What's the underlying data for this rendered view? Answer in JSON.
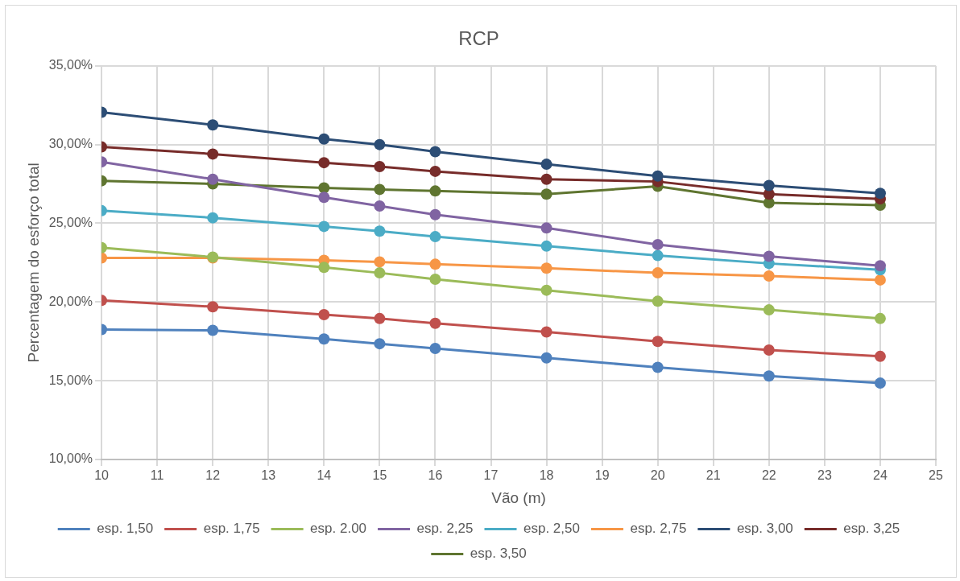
{
  "chart_data": {
    "type": "line",
    "title": "RCP",
    "xlabel": "Vão (m)",
    "ylabel": "Percentagem do esforço total",
    "x": [
      10,
      12,
      14,
      15,
      16,
      18,
      20,
      22,
      24
    ],
    "xlim": [
      10,
      25
    ],
    "xticks": [
      10,
      11,
      12,
      13,
      14,
      15,
      16,
      17,
      18,
      19,
      20,
      21,
      22,
      23,
      24,
      25
    ],
    "ylim": [
      10,
      35
    ],
    "yticks": [
      {
        "value": 10,
        "label": "10,00%"
      },
      {
        "value": 15,
        "label": "15,00%"
      },
      {
        "value": 20,
        "label": "20,00%"
      },
      {
        "value": 25,
        "label": "25,00%"
      },
      {
        "value": 30,
        "label": "30,00%"
      },
      {
        "value": 35,
        "label": "35,00%"
      }
    ],
    "grid": true,
    "legend": "bottom",
    "marker": "circle",
    "line_style": "solid",
    "series": [
      {
        "name": "esp. 1,50",
        "color": "#4f81bd",
        "values": [
          18.25,
          18.2,
          17.65,
          17.35,
          17.05,
          16.45,
          15.85,
          15.3,
          14.85
        ]
      },
      {
        "name": "esp. 1,75",
        "color": "#c0504d",
        "values": [
          20.1,
          19.7,
          19.2,
          18.95,
          18.65,
          18.1,
          17.5,
          16.95,
          16.55
        ]
      },
      {
        "name": "esp. 2.00",
        "color": "#9bbb59",
        "values": [
          23.45,
          22.85,
          22.2,
          21.85,
          21.45,
          20.75,
          20.05,
          19.5,
          18.95
        ]
      },
      {
        "name": "esp. 2,25",
        "color": "#8064a2",
        "values": [
          28.9,
          27.8,
          26.65,
          26.1,
          25.55,
          24.7,
          23.65,
          22.9,
          22.3
        ]
      },
      {
        "name": "esp. 2,50",
        "color": "#4bacc6",
        "values": [
          25.8,
          25.35,
          24.8,
          24.5,
          24.15,
          23.55,
          22.95,
          22.45,
          22.05
        ]
      },
      {
        "name": "esp. 2,75",
        "color": "#f79646",
        "values": [
          22.8,
          22.8,
          22.65,
          22.55,
          22.4,
          22.15,
          21.85,
          21.65,
          21.4
        ]
      },
      {
        "name": "esp. 3,00",
        "color": "#2c4d75",
        "values": [
          32.05,
          31.25,
          30.35,
          30.0,
          29.55,
          28.75,
          28.0,
          27.4,
          26.9
        ]
      },
      {
        "name": "esp. 3,25",
        "color": "#772c2a",
        "values": [
          29.85,
          29.4,
          28.85,
          28.6,
          28.3,
          27.8,
          27.65,
          26.85,
          26.55
        ]
      },
      {
        "name": "esp. 3,50",
        "color": "#5f7530",
        "values": [
          27.7,
          27.5,
          27.25,
          27.15,
          27.05,
          26.85,
          27.35,
          26.3,
          26.15
        ]
      }
    ]
  }
}
